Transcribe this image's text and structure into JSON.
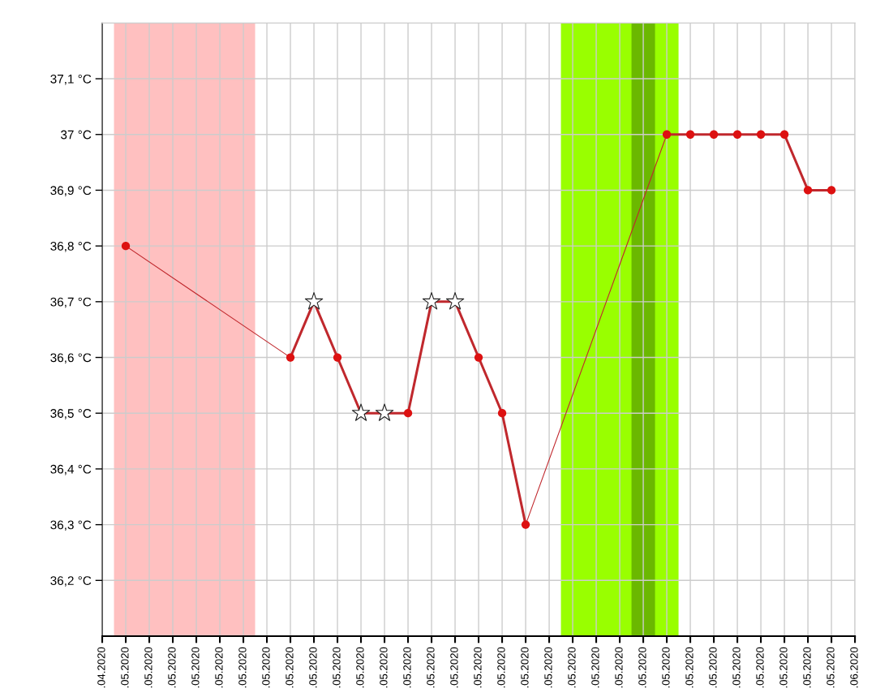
{
  "chart_data": {
    "type": "line",
    "xlim": [
      "2020-04-30",
      "2020-06-01"
    ],
    "xticks": [
      {
        "value": "2020-04-30",
        "label": ".04.2020"
      },
      {
        "value": "2020-05-01",
        "label": ".05.2020"
      },
      {
        "value": "2020-05-02",
        "label": ".05.2020"
      },
      {
        "value": "2020-05-03",
        "label": ".05.2020"
      },
      {
        "value": "2020-05-04",
        "label": ".05.2020"
      },
      {
        "value": "2020-05-05",
        "label": ".05.2020"
      },
      {
        "value": "2020-05-06",
        "label": ".05.2020"
      },
      {
        "value": "2020-05-07",
        "label": ".05.2020"
      },
      {
        "value": "2020-05-08",
        "label": ".05.2020"
      },
      {
        "value": "2020-05-09",
        "label": ".05.2020"
      },
      {
        "value": "2020-05-10",
        "label": ".05.2020"
      },
      {
        "value": "2020-05-11",
        "label": ".05.2020"
      },
      {
        "value": "2020-05-12",
        "label": ".05.2020"
      },
      {
        "value": "2020-05-13",
        "label": ".05.2020"
      },
      {
        "value": "2020-05-14",
        "label": ".05.2020"
      },
      {
        "value": "2020-05-15",
        "label": ".05.2020"
      },
      {
        "value": "2020-05-16",
        "label": ".05.2020"
      },
      {
        "value": "2020-05-17",
        "label": ".05.2020"
      },
      {
        "value": "2020-05-18",
        "label": ".05.2020"
      },
      {
        "value": "2020-05-19",
        "label": ".05.2020"
      },
      {
        "value": "2020-05-20",
        "label": ".05.2020"
      },
      {
        "value": "2020-05-21",
        "label": ".05.2020"
      },
      {
        "value": "2020-05-22",
        "label": ".05.2020"
      },
      {
        "value": "2020-05-23",
        "label": ".05.2020"
      },
      {
        "value": "2020-05-24",
        "label": ".05.2020"
      },
      {
        "value": "2020-05-25",
        "label": ".05.2020"
      },
      {
        "value": "2020-05-26",
        "label": ".05.2020"
      },
      {
        "value": "2020-05-27",
        "label": ".05.2020"
      },
      {
        "value": "2020-05-28",
        "label": ".05.2020"
      },
      {
        "value": "2020-05-29",
        "label": ".05.2020"
      },
      {
        "value": "2020-05-30",
        "label": ".05.2020"
      },
      {
        "value": "2020-05-31",
        "label": ".05.2020"
      },
      {
        "value": "2020-06-01",
        "label": ".06.2020"
      }
    ],
    "ylim": [
      36.1,
      37.2
    ],
    "yticks": [
      {
        "value": 36.2,
        "label": "36,2 °C"
      },
      {
        "value": 36.3,
        "label": "36,3 °C"
      },
      {
        "value": 36.4,
        "label": "36,4 °C"
      },
      {
        "value": 36.5,
        "label": "36,5 °C"
      },
      {
        "value": 36.6,
        "label": "36,6 °C"
      },
      {
        "value": 36.7,
        "label": "36,7 °C"
      },
      {
        "value": 36.8,
        "label": "36,8 °C"
      },
      {
        "value": 36.9,
        "label": "36,9 °C"
      },
      {
        "value": 37.0,
        "label": "37 °C"
      },
      {
        "value": 37.1,
        "label": "37,1 °C"
      }
    ],
    "grid": true,
    "legend": false,
    "bands": [
      {
        "axis": "x",
        "from": "2020-04-30T12:00",
        "to": "2020-05-06T12:00",
        "color": "#ffc0c0"
      },
      {
        "axis": "x",
        "from": "2020-05-19T12:00",
        "to": "2020-05-24T12:00",
        "color": "#99ff00"
      },
      {
        "axis": "x",
        "from": "2020-05-22T12:00",
        "to": "2020-05-23T12:00",
        "color": "#6bb800"
      }
    ],
    "series": [
      {
        "color": "#c0282d",
        "line_style": "solid",
        "marker": "none",
        "x": [
          "2020-05-01",
          "2020-05-08"
        ],
        "values": [
          36.8,
          36.6
        ]
      },
      {
        "color": "#c0282d",
        "line_style": "solid",
        "marker": "none",
        "x": [
          "2020-05-18",
          "2020-05-24"
        ],
        "values": [
          36.3,
          37.0
        ]
      },
      {
        "color": "#c0282d",
        "line_style": "solid",
        "marker": "none",
        "x": [
          "2020-05-08",
          "2020-05-09",
          "2020-05-10",
          "2020-05-11",
          "2020-05-12",
          "2020-05-13",
          "2020-05-14",
          "2020-05-15",
          "2020-05-16",
          "2020-05-17",
          "2020-05-18"
        ],
        "values": [
          36.6,
          36.7,
          36.6,
          36.5,
          36.5,
          36.5,
          36.7,
          36.7,
          36.6,
          36.5,
          36.3
        ]
      },
      {
        "color": "#c0282d",
        "line_style": "solid",
        "marker": "none",
        "x": [
          "2020-05-24",
          "2020-05-25",
          "2020-05-26",
          "2020-05-27",
          "2020-05-28",
          "2020-05-29",
          "2020-05-30",
          "2020-05-31"
        ],
        "values": [
          37.0,
          37.0,
          37.0,
          37.0,
          37.0,
          37.0,
          36.9,
          36.9
        ]
      },
      {
        "type": "scatter",
        "color": "#dd1111",
        "marker": "circle",
        "x": [
          "2020-05-01",
          "2020-05-08",
          "2020-05-10",
          "2020-05-13",
          "2020-05-16",
          "2020-05-17",
          "2020-05-18",
          "2020-05-24",
          "2020-05-25",
          "2020-05-26",
          "2020-05-27",
          "2020-05-28",
          "2020-05-29",
          "2020-05-30",
          "2020-05-31"
        ],
        "values": [
          36.8,
          36.6,
          36.6,
          36.5,
          36.6,
          36.5,
          36.3,
          37.0,
          37.0,
          37.0,
          37.0,
          37.0,
          37.0,
          36.9,
          36.9
        ]
      },
      {
        "type": "scatter",
        "color": "#ffffff",
        "marker": "star",
        "x": [
          "2020-05-09",
          "2020-05-11",
          "2020-05-12",
          "2020-05-14",
          "2020-05-15"
        ],
        "values": [
          36.7,
          36.5,
          36.5,
          36.7,
          36.7
        ]
      }
    ]
  }
}
